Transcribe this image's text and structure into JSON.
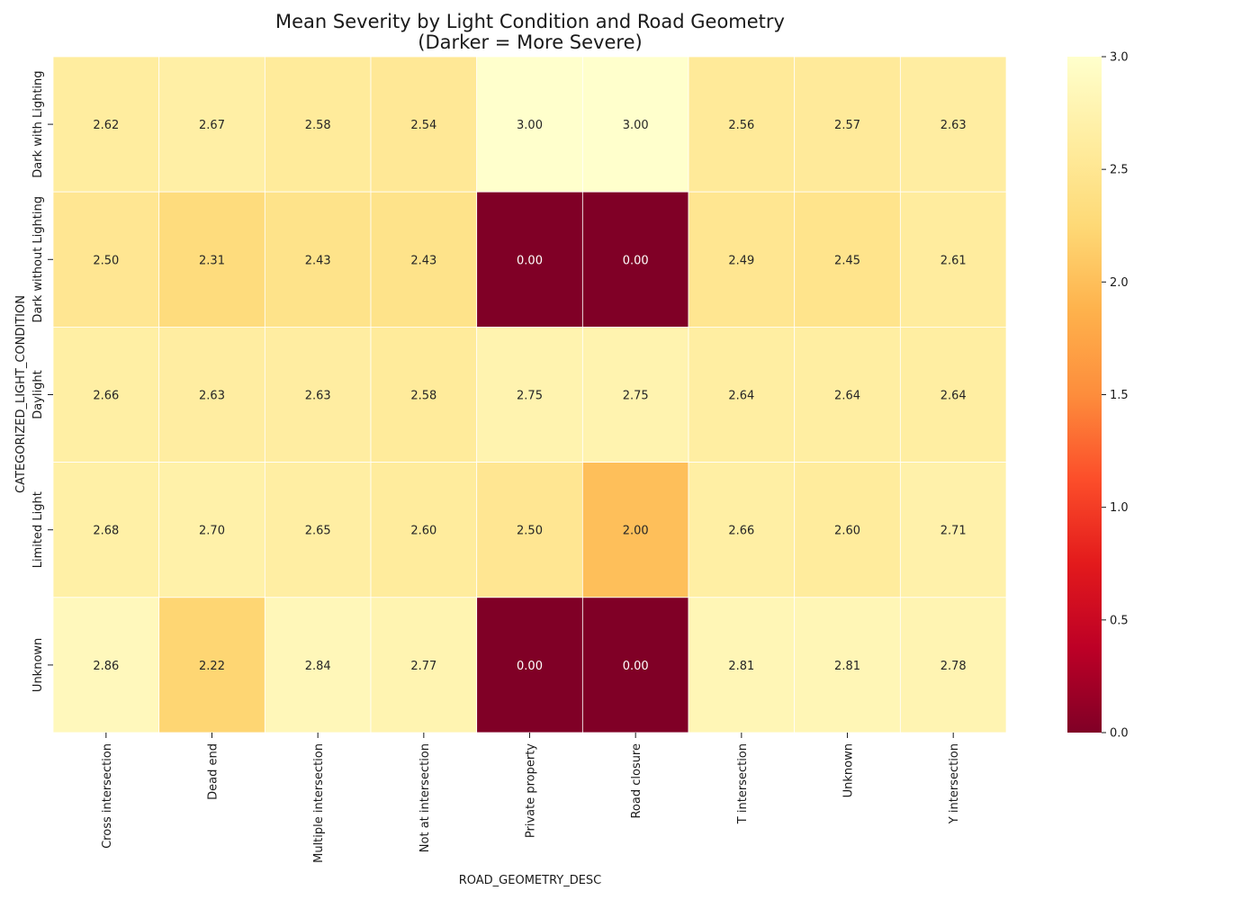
{
  "chart_data": {
    "type": "heatmap",
    "title": "Mean Severity by Light Condition and Road Geometry",
    "subtitle": "(Darker = More Severe)",
    "xlabel": "ROAD_GEOMETRY_DESC",
    "ylabel": "CATEGORIZED_LIGHT_CONDITION",
    "x_categories": [
      "Cross intersection",
      "Dead end",
      "Multiple intersection",
      "Not at intersection",
      "Private property",
      "Road closure",
      "T intersection",
      "Unknown",
      "Y intersection"
    ],
    "y_categories": [
      "Dark with Lighting",
      "Dark without Lighting",
      "Daylight",
      "Limited Light",
      "Unknown"
    ],
    "values": [
      [
        2.62,
        2.67,
        2.58,
        2.54,
        3.0,
        3.0,
        2.56,
        2.57,
        2.63
      ],
      [
        2.5,
        2.31,
        2.43,
        2.43,
        0.0,
        0.0,
        2.49,
        2.45,
        2.61
      ],
      [
        2.66,
        2.63,
        2.63,
        2.58,
        2.75,
        2.75,
        2.64,
        2.64,
        2.64
      ],
      [
        2.68,
        2.7,
        2.65,
        2.6,
        2.5,
        2.0,
        2.66,
        2.6,
        2.71
      ],
      [
        2.86,
        2.22,
        2.84,
        2.77,
        0.0,
        0.0,
        2.81,
        2.81,
        2.78
      ]
    ],
    "value_format": "0.00",
    "colormap": "YlOrRd_r",
    "vmin": 0,
    "vmax": 3,
    "colorbar_ticks": [
      "0.0",
      "0.5",
      "1.0",
      "1.5",
      "2.0",
      "2.5",
      "3.0"
    ],
    "grid_line_color": "#ffffff"
  }
}
